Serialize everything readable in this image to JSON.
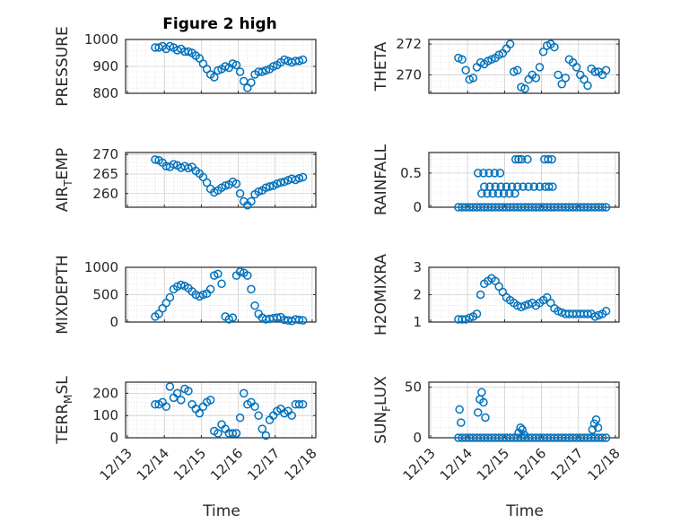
{
  "figure_title": "Figure 2 high",
  "colors": {
    "marker": "#0072BD",
    "axis": "#262626",
    "grid": "#d0d0d0"
  },
  "chart_data": [
    {
      "type": "scatter",
      "ylabel": "PRESSURE",
      "title": "Figure 2 high",
      "xlim": [
        12.95,
        18.1
      ],
      "ylim": [
        800,
        1000
      ],
      "yticks": [
        800,
        900,
        1000
      ],
      "x": [
        13.75,
        13.85,
        13.95,
        14.05,
        14.15,
        14.25,
        14.35,
        14.45,
        14.55,
        14.65,
        14.75,
        14.85,
        14.95,
        15.05,
        15.15,
        15.25,
        15.35,
        15.45,
        15.55,
        15.65,
        15.75,
        15.85,
        15.95,
        16.05,
        16.15,
        16.25,
        16.35,
        16.45,
        16.55,
        16.65,
        16.75,
        16.85,
        16.95,
        17.05,
        17.15,
        17.25,
        17.35,
        17.45,
        17.55,
        17.65,
        17.75
      ],
      "y": [
        970,
        970,
        975,
        965,
        975,
        970,
        960,
        965,
        955,
        955,
        950,
        940,
        930,
        910,
        890,
        870,
        860,
        885,
        890,
        900,
        895,
        910,
        905,
        880,
        845,
        820,
        840,
        870,
        880,
        880,
        885,
        890,
        900,
        905,
        915,
        925,
        920,
        915,
        920,
        920,
        925
      ],
      "grid": true
    },
    {
      "type": "scatter",
      "ylabel": "THETA",
      "xlim": [
        12.95,
        18.1
      ],
      "ylim": [
        268.8,
        272.3
      ],
      "yticks": [
        270,
        272
      ],
      "x": [
        13.75,
        13.85,
        13.95,
        14.05,
        14.15,
        14.25,
        14.35,
        14.45,
        14.55,
        14.65,
        14.75,
        14.85,
        14.95,
        15.05,
        15.15,
        15.25,
        15.35,
        15.45,
        15.55,
        15.65,
        15.75,
        15.85,
        15.95,
        16.05,
        16.15,
        16.25,
        16.35,
        16.45,
        16.55,
        16.65,
        16.75,
        16.85,
        16.95,
        17.05,
        17.15,
        17.25,
        17.35,
        17.45,
        17.55,
        17.65,
        17.75
      ],
      "y": [
        271.1,
        271.0,
        270.3,
        269.7,
        269.8,
        270.5,
        270.8,
        270.7,
        270.9,
        271.0,
        271.1,
        271.3,
        271.4,
        271.7,
        272.0,
        270.2,
        270.3,
        269.2,
        269.1,
        269.7,
        270.0,
        269.8,
        270.5,
        271.5,
        271.9,
        272.0,
        271.8,
        270.0,
        269.4,
        269.8,
        271.0,
        270.8,
        270.5,
        270.0,
        269.7,
        269.3,
        270.4,
        270.2,
        270.2,
        270.0,
        270.3
      ],
      "grid": true
    },
    {
      "type": "scatter",
      "ylabel": "AIR_TEMP",
      "xlim": [
        12.95,
        18.1
      ],
      "ylim": [
        256.5,
        270.5
      ],
      "yticks": [
        260,
        265,
        270
      ],
      "x": [
        13.75,
        13.85,
        13.95,
        14.05,
        14.15,
        14.25,
        14.35,
        14.45,
        14.55,
        14.65,
        14.75,
        14.85,
        14.95,
        15.05,
        15.15,
        15.25,
        15.35,
        15.45,
        15.55,
        15.65,
        15.75,
        15.85,
        15.95,
        16.05,
        16.15,
        16.25,
        16.35,
        16.45,
        16.55,
        16.65,
        16.75,
        16.85,
        16.95,
        17.05,
        17.15,
        17.25,
        17.35,
        17.45,
        17.55,
        17.65,
        17.75
      ],
      "y": [
        268.7,
        268.5,
        267.9,
        267.0,
        266.8,
        267.5,
        267.2,
        266.6,
        267.0,
        266.5,
        266.8,
        265.8,
        265.1,
        264.2,
        262.8,
        261.2,
        260.3,
        260.8,
        261.5,
        262.0,
        262.3,
        263.0,
        262.5,
        260.0,
        258.0,
        257.0,
        258.0,
        259.8,
        260.5,
        260.8,
        261.5,
        261.8,
        262.0,
        262.5,
        262.8,
        263.0,
        263.4,
        263.8,
        263.5,
        263.9,
        264.2
      ],
      "grid": true
    },
    {
      "type": "scatter",
      "ylabel": "RAINFALL",
      "xlim": [
        12.95,
        18.1
      ],
      "ylim": [
        0,
        0.8
      ],
      "yticks": [
        0,
        0.5
      ],
      "x": [
        13.75,
        13.85,
        13.95,
        14.05,
        14.15,
        14.25,
        14.35,
        14.45,
        14.55,
        14.65,
        14.75,
        14.85,
        14.95,
        15.05,
        15.15,
        15.25,
        15.35,
        15.45,
        15.55,
        15.65,
        15.75,
        15.85,
        15.95,
        16.05,
        16.15,
        16.25,
        16.35,
        16.45,
        16.55,
        16.65,
        16.75,
        16.85,
        16.95,
        17.05,
        17.15,
        17.25,
        17.35,
        17.45,
        17.55,
        17.65,
        17.75,
        14.28,
        14.43,
        14.58,
        14.73,
        14.88,
        14.38,
        14.53,
        14.68,
        14.83,
        14.98,
        15.13,
        15.28,
        14.45,
        14.6,
        14.75,
        14.9,
        15.05,
        15.2,
        15.35,
        15.5,
        15.65,
        15.8,
        15.95,
        16.1,
        16.2,
        16.3,
        15.3,
        15.38,
        15.46,
        15.62,
        16.08,
        16.18,
        16.28
      ],
      "y": [
        0,
        0,
        0,
        0,
        0,
        0,
        0,
        0,
        0,
        0,
        0,
        0,
        0,
        0,
        0,
        0,
        0,
        0,
        0,
        0,
        0,
        0,
        0,
        0,
        0,
        0,
        0,
        0,
        0,
        0,
        0,
        0,
        0,
        0,
        0,
        0,
        0,
        0,
        0,
        0,
        0,
        0.5,
        0.5,
        0.5,
        0.5,
        0.5,
        0.2,
        0.2,
        0.2,
        0.2,
        0.2,
        0.2,
        0.2,
        0.3,
        0.3,
        0.3,
        0.3,
        0.3,
        0.3,
        0.3,
        0.3,
        0.3,
        0.3,
        0.3,
        0.3,
        0.3,
        0.3,
        0.7,
        0.7,
        0.7,
        0.7,
        0.7,
        0.7,
        0.7
      ],
      "grid": true
    },
    {
      "type": "scatter",
      "ylabel": "MIXDEPTH",
      "xlim": [
        12.95,
        18.1
      ],
      "ylim": [
        0,
        1000
      ],
      "yticks": [
        0,
        500,
        1000
      ],
      "x": [
        13.75,
        13.85,
        13.95,
        14.05,
        14.15,
        14.25,
        14.35,
        14.45,
        14.55,
        14.65,
        14.75,
        14.85,
        14.95,
        15.05,
        15.15,
        15.25,
        15.35,
        15.45,
        15.55,
        15.65,
        15.75,
        15.85,
        15.95,
        16.05,
        16.15,
        16.25,
        16.35,
        16.45,
        16.55,
        16.65,
        16.75,
        16.85,
        16.95,
        17.05,
        17.15,
        17.25,
        17.35,
        17.45,
        17.55,
        17.65,
        17.75
      ],
      "y": [
        100,
        150,
        250,
        350,
        450,
        600,
        650,
        680,
        660,
        620,
        560,
        500,
        470,
        500,
        520,
        600,
        850,
        880,
        700,
        100,
        50,
        80,
        850,
        920,
        900,
        850,
        600,
        300,
        150,
        80,
        50,
        60,
        70,
        80,
        90,
        40,
        30,
        20,
        50,
        40,
        30
      ],
      "grid": true
    },
    {
      "type": "scatter",
      "ylabel": "H2OMIXRA",
      "xlim": [
        12.95,
        18.1
      ],
      "ylim": [
        1,
        3
      ],
      "yticks": [
        1,
        2,
        3
      ],
      "x": [
        13.75,
        13.85,
        13.95,
        14.05,
        14.15,
        14.25,
        14.35,
        14.45,
        14.55,
        14.65,
        14.75,
        14.85,
        14.95,
        15.05,
        15.15,
        15.25,
        15.35,
        15.45,
        15.55,
        15.65,
        15.75,
        15.85,
        15.95,
        16.05,
        16.15,
        16.25,
        16.35,
        16.45,
        16.55,
        16.65,
        16.75,
        16.85,
        16.95,
        17.05,
        17.15,
        17.25,
        17.35,
        17.45,
        17.55,
        17.65,
        17.75
      ],
      "y": [
        1.1,
        1.1,
        1.1,
        1.15,
        1.2,
        1.3,
        2.0,
        2.4,
        2.5,
        2.6,
        2.5,
        2.3,
        2.1,
        1.9,
        1.8,
        1.7,
        1.6,
        1.55,
        1.6,
        1.65,
        1.7,
        1.6,
        1.7,
        1.8,
        1.9,
        1.7,
        1.5,
        1.4,
        1.35,
        1.3,
        1.3,
        1.3,
        1.3,
        1.3,
        1.3,
        1.3,
        1.3,
        1.2,
        1.25,
        1.3,
        1.4
      ],
      "grid": true
    },
    {
      "type": "scatter",
      "ylabel": "TERR_MSL",
      "xlim": [
        12.95,
        18.1
      ],
      "ylim": [
        0,
        250
      ],
      "yticks": [
        0,
        100,
        200
      ],
      "x": [
        13.75,
        13.85,
        13.95,
        14.05,
        14.15,
        14.25,
        14.35,
        14.45,
        14.55,
        14.65,
        14.75,
        14.85,
        14.95,
        15.05,
        15.15,
        15.25,
        15.35,
        15.45,
        15.55,
        15.65,
        15.75,
        15.85,
        15.95,
        16.05,
        16.15,
        16.25,
        16.35,
        16.45,
        16.55,
        16.65,
        16.75,
        16.85,
        16.95,
        17.05,
        17.15,
        17.25,
        17.35,
        17.45,
        17.55,
        17.65,
        17.75
      ],
      "y": [
        150,
        150,
        160,
        140,
        230,
        180,
        200,
        170,
        220,
        210,
        150,
        130,
        110,
        140,
        160,
        170,
        30,
        20,
        60,
        40,
        20,
        20,
        20,
        90,
        200,
        150,
        160,
        140,
        100,
        40,
        10,
        80,
        100,
        120,
        130,
        110,
        120,
        100,
        150,
        150,
        150
      ],
      "grid": true
    },
    {
      "type": "scatter",
      "ylabel": "SUN_FLUX",
      "xlim": [
        12.95,
        18.1
      ],
      "ylim": [
        0,
        55
      ],
      "yticks": [
        0,
        50
      ],
      "x": [
        13.75,
        13.85,
        13.95,
        14.05,
        14.15,
        14.25,
        14.35,
        14.45,
        14.55,
        14.65,
        14.75,
        14.85,
        14.95,
        15.05,
        15.15,
        15.25,
        15.35,
        15.45,
        15.55,
        15.65,
        15.75,
        15.85,
        15.95,
        16.05,
        16.15,
        16.25,
        16.35,
        16.45,
        16.55,
        16.65,
        16.75,
        16.85,
        16.95,
        17.05,
        17.15,
        17.25,
        17.35,
        17.45,
        17.55,
        17.65,
        17.75,
        13.78,
        13.82,
        14.28,
        14.33,
        14.38,
        14.43,
        14.48,
        15.38,
        15.43,
        15.48,
        15.53,
        17.38,
        17.43,
        17.48,
        17.53
      ],
      "y": [
        0,
        0,
        0,
        0,
        0,
        0,
        0,
        0,
        0,
        0,
        0,
        0,
        0,
        0,
        0,
        0,
        0,
        0,
        0,
        0,
        0,
        0,
        0,
        0,
        0,
        0,
        0,
        0,
        0,
        0,
        0,
        0,
        0,
        0,
        0,
        0,
        0,
        0,
        0,
        0,
        0,
        28,
        15,
        25,
        38,
        45,
        35,
        20,
        5,
        10,
        8,
        3,
        8,
        14,
        18,
        10
      ],
      "grid": true
    }
  ],
  "xticks": [
    "12/13",
    "12/14",
    "12/15",
    "12/16",
    "12/17",
    "12/18"
  ],
  "xlabel": "Time"
}
